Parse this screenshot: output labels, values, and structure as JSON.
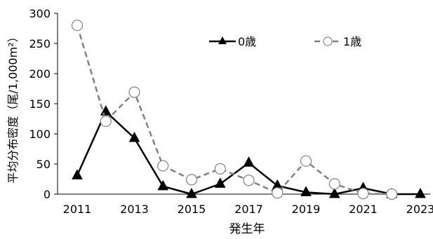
{
  "chart_data": {
    "type": "line",
    "title": "",
    "xlabel": "発生年",
    "ylabel": "平均分布密度（尾/1,000m²）",
    "x": [
      2011,
      2012,
      2013,
      2014,
      2015,
      2016,
      2017,
      2018,
      2019,
      2020,
      2021,
      2022,
      2023
    ],
    "xticks": [
      "2011",
      "2013",
      "2015",
      "2017",
      "2019",
      "2021",
      "2023"
    ],
    "xtick_values": [
      2011,
      2013,
      2015,
      2017,
      2019,
      2021,
      2023
    ],
    "yticks": [
      "0",
      "50",
      "100",
      "150",
      "200",
      "250",
      "300"
    ],
    "ytick_values": [
      0,
      50,
      100,
      150,
      200,
      250,
      300
    ],
    "ylim": [
      0,
      300
    ],
    "grid": false,
    "legend_position": "top-right",
    "series": [
      {
        "name": "0歳",
        "values": [
          31,
          137,
          93,
          13,
          0,
          17,
          52,
          14,
          3,
          0,
          10,
          0,
          0
        ],
        "color": "#000000",
        "line_style": "solid",
        "marker": "filled-triangle"
      },
      {
        "name": "1歳",
        "values": [
          280,
          121,
          169,
          47,
          24,
          42,
          23,
          2,
          55,
          17,
          1,
          0,
          null
        ],
        "color": "#808080",
        "line_style": "dashed",
        "marker": "open-circle"
      }
    ]
  }
}
